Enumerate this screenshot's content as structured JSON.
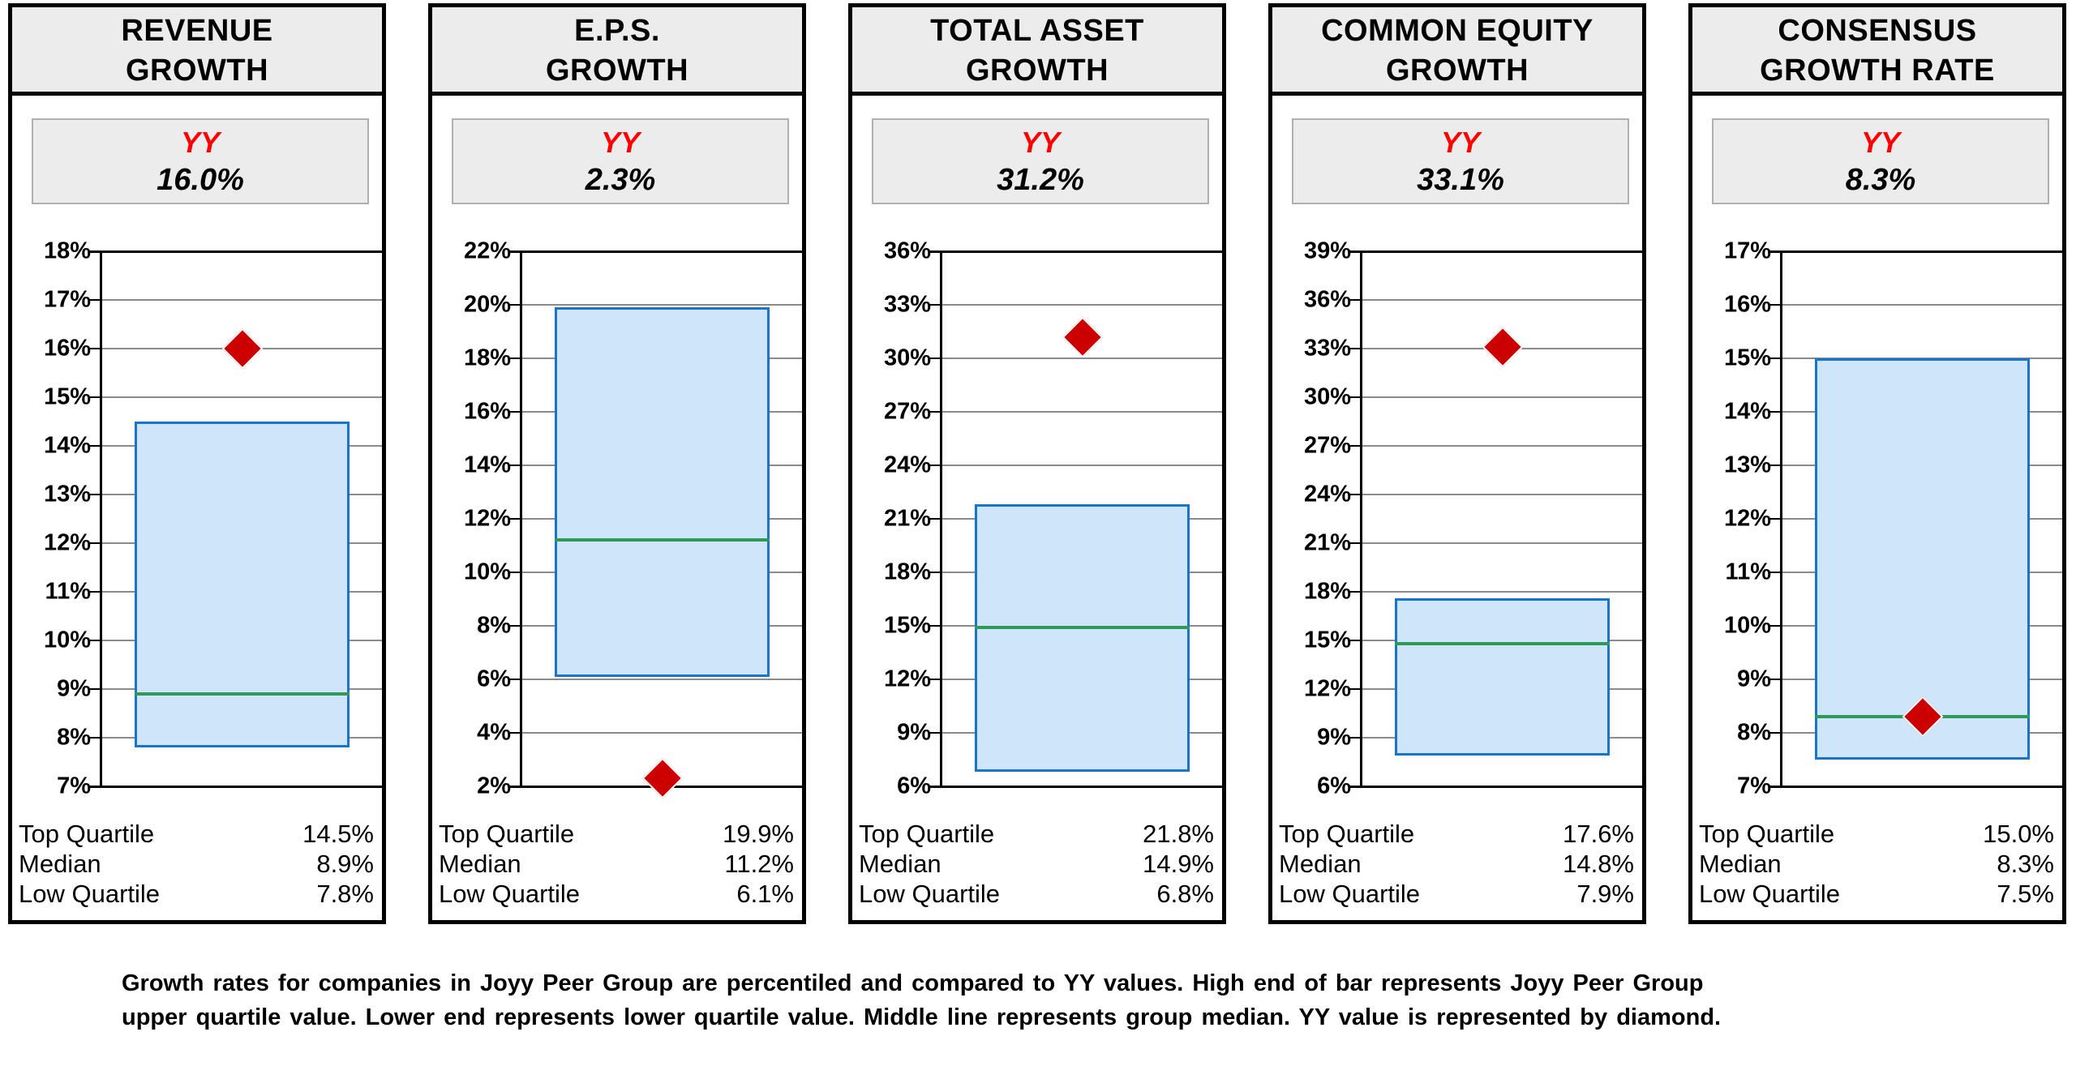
{
  "chart_data": {
    "type": "boxplot",
    "description": "Five quartile box charts comparing YY growth values against Joyy Peer Group percentiles; diamond marker = YY value, box = upper/lower quartile, middle line = median.",
    "marker_legend": "YY value is represented by diamond",
    "panels": [
      {
        "title": "REVENUE GROWTH",
        "title_line1": "REVENUE",
        "title_line2": "GROWTH",
        "yy_label": "YY",
        "yy_value_text": "16.0%",
        "yy_value": 16.0,
        "axis": {
          "max": 18,
          "min": 7,
          "step": 1,
          "tick_suffix": "%"
        },
        "top_quartile": 14.5,
        "median": 8.9,
        "low_quartile": 7.8,
        "table": {
          "top_label": "Top Quartile",
          "top_value": "14.5%",
          "median_label": "Median",
          "median_value": "8.9%",
          "low_label": "Low Quartile",
          "low_value": "7.8%"
        }
      },
      {
        "title": "E.P.S. GROWTH",
        "title_line1": "E.P.S.",
        "title_line2": "GROWTH",
        "yy_label": "YY",
        "yy_value_text": "2.3%",
        "yy_value": 2.3,
        "axis": {
          "max": 22,
          "min": 2,
          "step": 2,
          "tick_suffix": "%"
        },
        "top_quartile": 19.9,
        "median": 11.2,
        "low_quartile": 6.1,
        "table": {
          "top_label": "Top Quartile",
          "top_value": "19.9%",
          "median_label": "Median",
          "median_value": "11.2%",
          "low_label": "Low Quartile",
          "low_value": "6.1%"
        }
      },
      {
        "title": "TOTAL ASSET GROWTH",
        "title_line1": "TOTAL ASSET",
        "title_line2": "GROWTH",
        "yy_label": "YY",
        "yy_value_text": "31.2%",
        "yy_value": 31.2,
        "axis": {
          "max": 36,
          "min": 6,
          "step": 3,
          "tick_suffix": "%"
        },
        "top_quartile": 21.8,
        "median": 14.9,
        "low_quartile": 6.8,
        "table": {
          "top_label": "Top Quartile",
          "top_value": "21.8%",
          "median_label": "Median",
          "median_value": "14.9%",
          "low_label": "Low Quartile",
          "low_value": "6.8%"
        }
      },
      {
        "title": "COMMON EQUITY GROWTH",
        "title_line1": "COMMON EQUITY",
        "title_line2": "GROWTH",
        "yy_label": "YY",
        "yy_value_text": "33.1%",
        "yy_value": 33.1,
        "axis": {
          "max": 39,
          "min": 6,
          "step": 3,
          "tick_suffix": "%"
        },
        "top_quartile": 17.6,
        "median": 14.8,
        "low_quartile": 7.9,
        "table": {
          "top_label": "Top Quartile",
          "top_value": "17.6%",
          "median_label": "Median",
          "median_value": "14.8%",
          "low_label": "Low Quartile",
          "low_value": "7.9%"
        }
      },
      {
        "title": "CONSENSUS GROWTH RATE",
        "title_line1": "CONSENSUS",
        "title_line2": "GROWTH RATE",
        "yy_label": "YY",
        "yy_value_text": "8.3%",
        "yy_value": 8.3,
        "axis": {
          "max": 17,
          "min": 7,
          "step": 1,
          "tick_suffix": "%"
        },
        "top_quartile": 15.0,
        "median": 8.3,
        "low_quartile": 7.5,
        "table": {
          "top_label": "Top Quartile",
          "top_value": "15.0%",
          "median_label": "Median",
          "median_value": "8.3%",
          "low_label": "Low Quartile",
          "low_value": "7.5%"
        }
      }
    ]
  },
  "footer": {
    "line1": "Growth rates for companies in Joyy Peer Group are percentiled and compared to YY values.  High end of bar represents Joyy Peer Group",
    "line2": "upper quartile value.  Lower end represents lower quartile value.  Middle line represents group median.  YY value is represented by diamond."
  },
  "colors": {
    "box_fill": "#cfe6fa",
    "box_border": "#1874cd",
    "median_line": "#2e9958",
    "diamond": "#cc0000",
    "header_bg": "#ececec",
    "gridline": "#8a8a8a",
    "yy_label_red": "#ff0000"
  }
}
